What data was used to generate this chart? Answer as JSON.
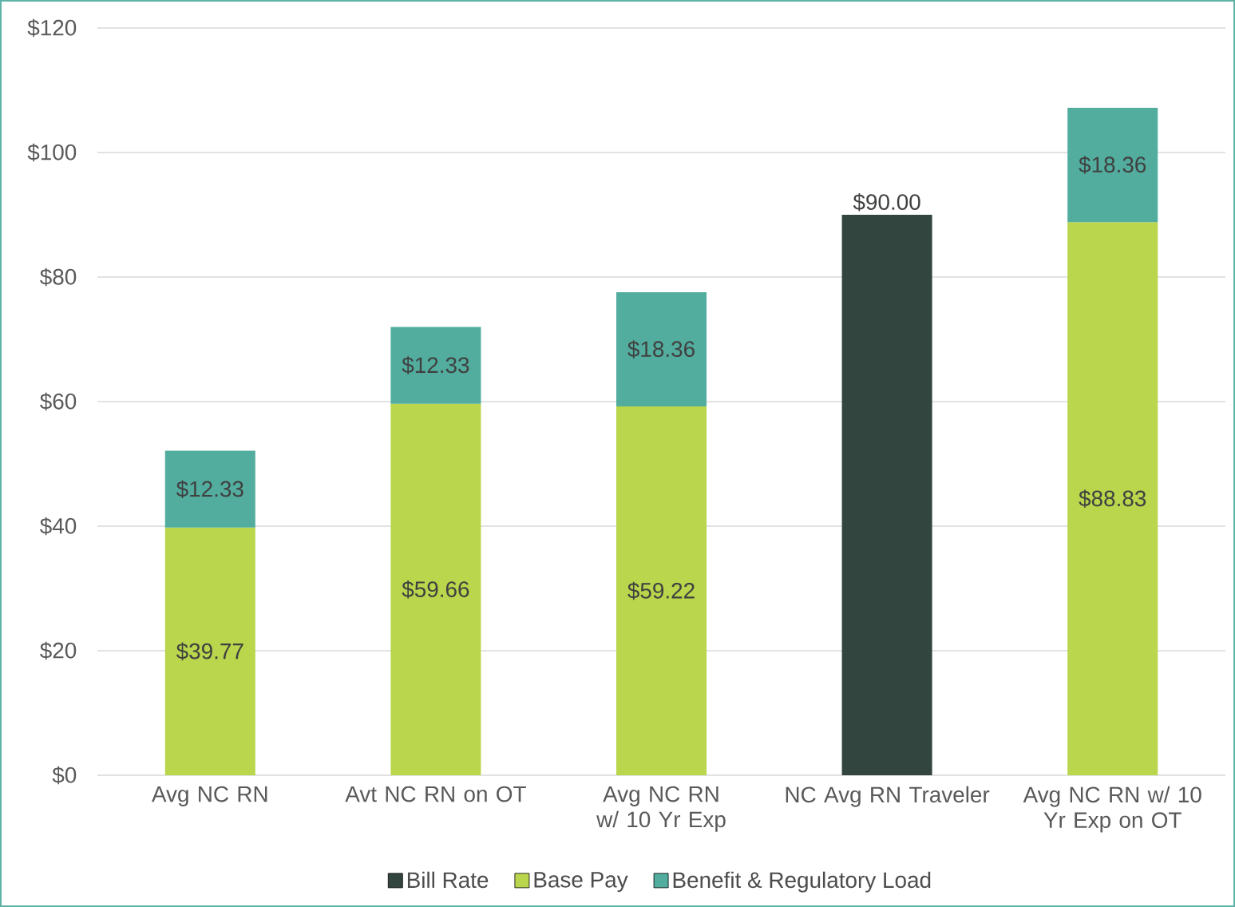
{
  "chart_data": {
    "type": "bar",
    "stacked": true,
    "categories": [
      "Avg NC RN",
      "Avt NC RN on OT",
      "Avg NC RN w/ 10 Yr Exp",
      "NC Avg RN Traveler",
      "Avg NC RN w/ 10 Yr Exp on OT"
    ],
    "series": [
      {
        "name": "Bill Rate",
        "color": "#33453f",
        "values": [
          null,
          null,
          null,
          90.0,
          null
        ],
        "value_labels": [
          null,
          null,
          null,
          "$90.00",
          null
        ]
      },
      {
        "name": "Base Pay",
        "color": "#b9d64c",
        "values": [
          39.77,
          59.66,
          59.22,
          null,
          88.83
        ],
        "value_labels": [
          "$39.77",
          "$59.66",
          "$59.22",
          null,
          "$88.83"
        ]
      },
      {
        "name": "Benefit & Regulatory Load",
        "color": "#52ad9f",
        "values": [
          12.33,
          12.33,
          18.36,
          null,
          18.36
        ],
        "value_labels": [
          "$12.33",
          "$12.33",
          "$18.36",
          null,
          "$18.36"
        ]
      }
    ],
    "ylim": [
      0,
      120
    ],
    "yticks": [
      {
        "value": 0,
        "label": "$0"
      },
      {
        "value": 20,
        "label": "$20"
      },
      {
        "value": 40,
        "label": "$40"
      },
      {
        "value": 60,
        "label": "$60"
      },
      {
        "value": 80,
        "label": "$80"
      },
      {
        "value": 100,
        "label": "$100"
      },
      {
        "value": 120,
        "label": "$120"
      }
    ],
    "grid": "y",
    "legend": "bottom"
  }
}
